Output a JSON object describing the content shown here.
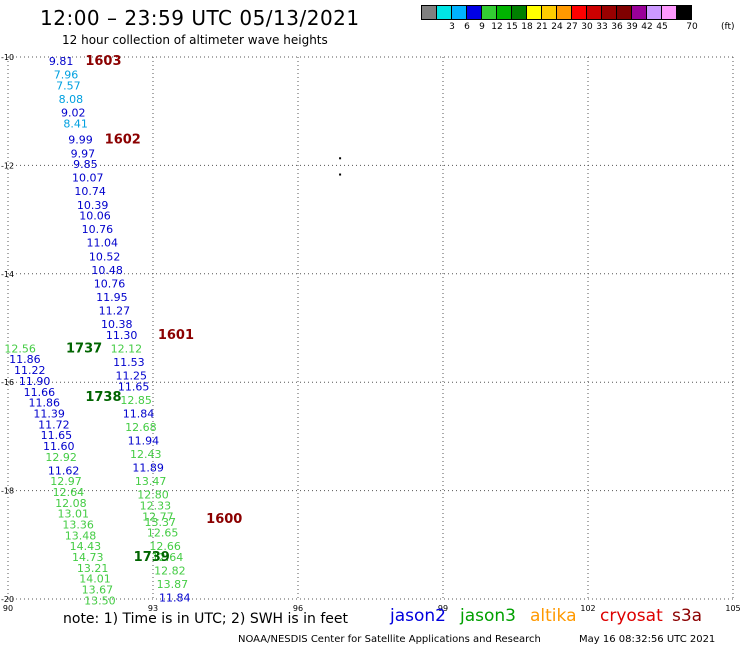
{
  "header": {
    "title": "12:00 – 23:59 UTC 05/13/2021",
    "subtitle": "12 hour collection of altimeter wave heights"
  },
  "colorbar": {
    "colors": [
      "#808080",
      "#00e5e5",
      "#00b2ff",
      "#0000e6",
      "#33cc33",
      "#00b300",
      "#008000",
      "#ffff00",
      "#ffcc00",
      "#ff9900",
      "#ff0000",
      "#cc0000",
      "#990000",
      "#800000",
      "#990099",
      "#cc99ff",
      "#ff99ff",
      "#000000"
    ],
    "labels": [
      "3",
      "6",
      "9",
      "12",
      "15",
      "18",
      "21",
      "24",
      "27",
      "30",
      "33",
      "36",
      "39",
      "42",
      "45",
      "70"
    ],
    "unit": "(ft)"
  },
  "map": {
    "lon_range": [
      90,
      105
    ],
    "lat_range": [
      -20,
      -10
    ],
    "x_ticks": [
      "90",
      "93",
      "96",
      "99",
      "102",
      "105"
    ],
    "y_ticks": [
      "-10",
      "-12",
      "-14",
      "-16",
      "-18",
      "-20"
    ],
    "grid": true,
    "orbit_labels": [
      {
        "text": "1603",
        "lon": 91.6,
        "lat": -10.15,
        "color": "#8b0000"
      },
      {
        "text": "1602",
        "lon": 92.0,
        "lat": -11.6,
        "color": "#8b0000"
      },
      {
        "text": "1601",
        "lon": 93.1,
        "lat": -15.2,
        "color": "#8b0000"
      },
      {
        "text": "1600",
        "lon": 94.1,
        "lat": -18.6,
        "color": "#8b0000"
      },
      {
        "text": "1737",
        "lon": 91.2,
        "lat": -15.45,
        "color": "#006400"
      },
      {
        "text": "1738",
        "lon": 91.6,
        "lat": -16.35,
        "color": "#006400"
      },
      {
        "text": "1739",
        "lon": 92.6,
        "lat": -19.3,
        "color": "#006400"
      }
    ],
    "heights": [
      {
        "t": "9.81",
        "lon": 91.1,
        "lat": -10.15,
        "c": "#0000cc"
      },
      {
        "t": "7.96",
        "lon": 91.2,
        "lat": -10.4,
        "c": "#00a0e0"
      },
      {
        "t": "7.57",
        "lon": 91.25,
        "lat": -10.6,
        "c": "#00a0e0"
      },
      {
        "t": "8.08",
        "lon": 91.3,
        "lat": -10.85,
        "c": "#00a0e0"
      },
      {
        "t": "9.02",
        "lon": 91.35,
        "lat": -11.1,
        "c": "#0000cc"
      },
      {
        "t": "8.41",
        "lon": 91.4,
        "lat": -11.3,
        "c": "#00a0e0"
      },
      {
        "t": "9.99",
        "lon": 91.5,
        "lat": -11.6,
        "c": "#0000cc"
      },
      {
        "t": "9.97",
        "lon": 91.55,
        "lat": -11.85,
        "c": "#0000cc"
      },
      {
        "t": "9.85",
        "lon": 91.6,
        "lat": -12.05,
        "c": "#0000cc"
      },
      {
        "t": "10.07",
        "lon": 91.65,
        "lat": -12.3,
        "c": "#0000cc"
      },
      {
        "t": "10.74",
        "lon": 91.7,
        "lat": -12.55,
        "c": "#0000cc"
      },
      {
        "t": "10.39",
        "lon": 91.75,
        "lat": -12.8,
        "c": "#0000cc"
      },
      {
        "t": "10.06",
        "lon": 91.8,
        "lat": -13.0,
        "c": "#0000cc"
      },
      {
        "t": "10.76",
        "lon": 91.85,
        "lat": -13.25,
        "c": "#0000cc"
      },
      {
        "t": "11.04",
        "lon": 91.95,
        "lat": -13.5,
        "c": "#0000cc"
      },
      {
        "t": "10.52",
        "lon": 92.0,
        "lat": -13.75,
        "c": "#0000cc"
      },
      {
        "t": "10.48",
        "lon": 92.05,
        "lat": -14.0,
        "c": "#0000cc"
      },
      {
        "t": "10.76",
        "lon": 92.1,
        "lat": -14.25,
        "c": "#0000cc"
      },
      {
        "t": "11.95",
        "lon": 92.15,
        "lat": -14.5,
        "c": "#0000cc"
      },
      {
        "t": "11.27",
        "lon": 92.2,
        "lat": -14.75,
        "c": "#0000cc"
      },
      {
        "t": "10.38",
        "lon": 92.25,
        "lat": -15.0,
        "c": "#0000cc"
      },
      {
        "t": "11.30",
        "lon": 92.35,
        "lat": -15.2,
        "c": "#0000cc"
      },
      {
        "t": "12.12",
        "lon": 92.45,
        "lat": -15.45,
        "c": "#44cc44"
      },
      {
        "t": "11.53",
        "lon": 92.5,
        "lat": -15.7,
        "c": "#0000cc"
      },
      {
        "t": "11.25",
        "lon": 92.55,
        "lat": -15.95,
        "c": "#0000cc"
      },
      {
        "t": "11.65",
        "lon": 92.6,
        "lat": -16.15,
        "c": "#0000cc"
      },
      {
        "t": "12.85",
        "lon": 92.65,
        "lat": -16.4,
        "c": "#44cc44"
      },
      {
        "t": "11.84",
        "lon": 92.7,
        "lat": -16.65,
        "c": "#0000cc"
      },
      {
        "t": "12.68",
        "lon": 92.75,
        "lat": -16.9,
        "c": "#44cc44"
      },
      {
        "t": "11.94",
        "lon": 92.8,
        "lat": -17.15,
        "c": "#0000cc"
      },
      {
        "t": "12.43",
        "lon": 92.85,
        "lat": -17.4,
        "c": "#44cc44"
      },
      {
        "t": "11.89",
        "lon": 92.9,
        "lat": -17.65,
        "c": "#0000cc"
      },
      {
        "t": "13.47",
        "lon": 92.95,
        "lat": -17.9,
        "c": "#44cc44"
      },
      {
        "t": "12.80",
        "lon": 93.0,
        "lat": -18.15,
        "c": "#44cc44"
      },
      {
        "t": "12.33",
        "lon": 93.05,
        "lat": -18.35,
        "c": "#44cc44"
      },
      {
        "t": "12.77",
        "lon": 93.1,
        "lat": -18.55,
        "c": "#44cc44"
      },
      {
        "t": "13.37",
        "lon": 93.15,
        "lat": -18.65,
        "c": "#44cc44"
      },
      {
        "t": "12.65",
        "lon": 93.2,
        "lat": -18.85,
        "c": "#44cc44"
      },
      {
        "t": "12.66",
        "lon": 93.25,
        "lat": -19.1,
        "c": "#44cc44"
      },
      {
        "t": "12.64",
        "lon": 93.3,
        "lat": -19.3,
        "c": "#44cc44"
      },
      {
        "t": "12.82",
        "lon": 93.35,
        "lat": -19.55,
        "c": "#44cc44"
      },
      {
        "t": "13.87",
        "lon": 93.4,
        "lat": -19.8,
        "c": "#44cc44"
      },
      {
        "t": "11.84",
        "lon": 93.45,
        "lat": -20.05,
        "c": "#0000cc"
      },
      {
        "t": "12.56",
        "lon": 90.25,
        "lat": -15.45,
        "c": "#44cc44"
      },
      {
        "t": "11.86",
        "lon": 90.35,
        "lat": -15.65,
        "c": "#0000cc"
      },
      {
        "t": "11.22",
        "lon": 90.45,
        "lat": -15.85,
        "c": "#0000cc"
      },
      {
        "t": "11.90",
        "lon": 90.55,
        "lat": -16.05,
        "c": "#0000cc"
      },
      {
        "t": "11.66",
        "lon": 90.65,
        "lat": -16.25,
        "c": "#0000cc"
      },
      {
        "t": "11.86",
        "lon": 90.75,
        "lat": -16.45,
        "c": "#0000cc"
      },
      {
        "t": "11.39",
        "lon": 90.85,
        "lat": -16.65,
        "c": "#0000cc"
      },
      {
        "t": "11.72",
        "lon": 90.95,
        "lat": -16.85,
        "c": "#0000cc"
      },
      {
        "t": "11.65",
        "lon": 91.0,
        "lat": -17.05,
        "c": "#0000cc"
      },
      {
        "t": "11.60",
        "lon": 91.05,
        "lat": -17.25,
        "c": "#0000cc"
      },
      {
        "t": "12.92",
        "lon": 91.1,
        "lat": -17.45,
        "c": "#44cc44"
      },
      {
        "t": "11.62",
        "lon": 91.15,
        "lat": -17.7,
        "c": "#0000cc"
      },
      {
        "t": "12.97",
        "lon": 91.2,
        "lat": -17.9,
        "c": "#44cc44"
      },
      {
        "t": "12.64",
        "lon": 91.25,
        "lat": -18.1,
        "c": "#44cc44"
      },
      {
        "t": "12.08",
        "lon": 91.3,
        "lat": -18.3,
        "c": "#44cc44"
      },
      {
        "t": "13.01",
        "lon": 91.35,
        "lat": -18.5,
        "c": "#44cc44"
      },
      {
        "t": "13.36",
        "lon": 91.45,
        "lat": -18.7,
        "c": "#44cc44"
      },
      {
        "t": "13.48",
        "lon": 91.5,
        "lat": -18.9,
        "c": "#44cc44"
      },
      {
        "t": "14.43",
        "lon": 91.6,
        "lat": -19.1,
        "c": "#44cc44"
      },
      {
        "t": "14.73",
        "lon": 91.65,
        "lat": -19.3,
        "c": "#44cc44"
      },
      {
        "t": "13.21",
        "lon": 91.75,
        "lat": -19.5,
        "c": "#44cc44"
      },
      {
        "t": "14.01",
        "lon": 91.8,
        "lat": -19.7,
        "c": "#44cc44"
      },
      {
        "t": "13.67",
        "lon": 91.85,
        "lat": -19.9,
        "c": "#44cc44"
      },
      {
        "t": "13.50",
        "lon": 91.9,
        "lat": -20.1,
        "c": "#44cc44"
      }
    ],
    "markers": [
      {
        "lon": 96.85,
        "lat": -11.85
      },
      {
        "lon": 96.85,
        "lat": -12.15
      }
    ]
  },
  "footer": {
    "note": "note: 1) Time is in UTC; 2) SWH is in feet",
    "satellites": [
      {
        "name": "jason2",
        "color": "#0000dd"
      },
      {
        "name": "jason3",
        "color": "#00a000"
      },
      {
        "name": "altika",
        "color": "#ff9900"
      },
      {
        "name": "cryosat",
        "color": "#dd0000"
      },
      {
        "name": "s3a",
        "color": "#8b0000"
      }
    ],
    "credit": "NOAA/NESDIS Center for Satellite Applications and Research",
    "timestamp": "May 16 08:32:56 UTC 2021"
  }
}
